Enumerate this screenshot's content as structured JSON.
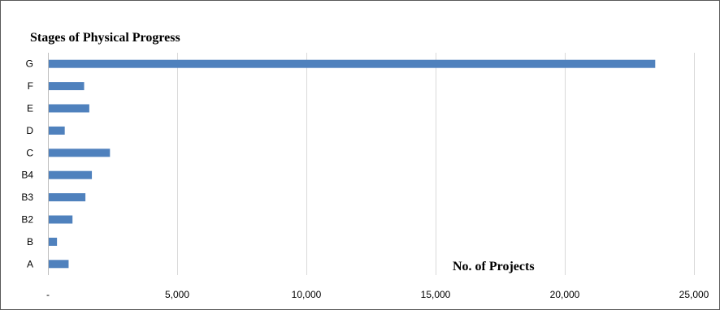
{
  "chart_data": {
    "type": "bar",
    "orientation": "horizontal",
    "title": "Stages of Physical Progress",
    "xlabel": "No. of Projects",
    "ylabel": "",
    "categories": [
      "A",
      "B",
      "B2",
      "B3",
      "B4",
      "C",
      "D",
      "E",
      "F",
      "G"
    ],
    "values": [
      800,
      350,
      950,
      1450,
      1700,
      2400,
      650,
      1600,
      1400,
      23500
    ],
    "xlim": [
      0,
      25000
    ],
    "xticks": [
      0,
      5000,
      10000,
      15000,
      20000,
      25000
    ],
    "xtick_labels": [
      "-",
      "5,000",
      "10,000",
      "15,000",
      "20,000",
      "25,000"
    ],
    "grid": true,
    "legend": "none",
    "bar_color": "#4f81bd",
    "grid_color": "#d9d9d9"
  }
}
